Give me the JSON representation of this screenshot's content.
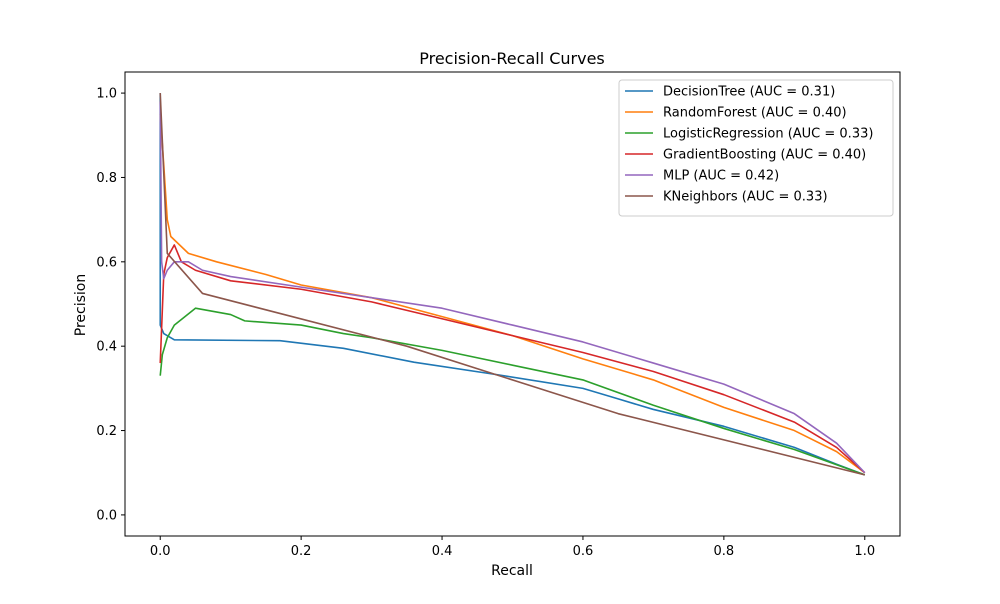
{
  "chart_data": {
    "type": "line",
    "title": "Precision-Recall Curves",
    "xlabel": "Recall",
    "ylabel": "Precision",
    "xlim": [
      -0.05,
      1.05
    ],
    "ylim": [
      -0.05,
      1.05
    ],
    "xticks": [
      0.0,
      0.2,
      0.4,
      0.6,
      0.8,
      1.0
    ],
    "xtick_labels": [
      "0.0",
      "0.2",
      "0.4",
      "0.6",
      "0.8",
      "1.0"
    ],
    "yticks": [
      0.0,
      0.2,
      0.4,
      0.6,
      0.8,
      1.0
    ],
    "ytick_labels": [
      "0.0",
      "0.2",
      "0.4",
      "0.6",
      "0.8",
      "1.0"
    ],
    "grid": false,
    "legend_position": "top-right",
    "series": [
      {
        "name": "DecisionTree (AUC = 0.31)",
        "color": "#1f77b4",
        "points": [
          [
            0.0,
            1.0
          ],
          [
            0.0,
            0.45
          ],
          [
            0.005,
            0.43
          ],
          [
            0.02,
            0.415
          ],
          [
            0.17,
            0.413
          ],
          [
            0.26,
            0.395
          ],
          [
            0.36,
            0.362
          ],
          [
            0.48,
            0.332
          ],
          [
            0.6,
            0.3
          ],
          [
            0.65,
            0.275
          ],
          [
            0.7,
            0.25
          ],
          [
            0.8,
            0.21
          ],
          [
            0.9,
            0.16
          ],
          [
            0.96,
            0.12
          ],
          [
            1.0,
            0.095
          ]
        ]
      },
      {
        "name": "RandomForest (AUC = 0.40)",
        "color": "#ff7f0e",
        "points": [
          [
            0.0,
            0.95
          ],
          [
            0.005,
            0.83
          ],
          [
            0.01,
            0.7
          ],
          [
            0.015,
            0.66
          ],
          [
            0.04,
            0.62
          ],
          [
            0.08,
            0.6
          ],
          [
            0.15,
            0.57
          ],
          [
            0.2,
            0.545
          ],
          [
            0.3,
            0.515
          ],
          [
            0.4,
            0.47
          ],
          [
            0.5,
            0.425
          ],
          [
            0.6,
            0.37
          ],
          [
            0.7,
            0.32
          ],
          [
            0.8,
            0.255
          ],
          [
            0.9,
            0.2
          ],
          [
            0.96,
            0.15
          ],
          [
            1.0,
            0.1
          ]
        ]
      },
      {
        "name": "LogisticRegression (AUC = 0.33)",
        "color": "#2ca02c",
        "points": [
          [
            0.0,
            0.33
          ],
          [
            0.003,
            0.38
          ],
          [
            0.01,
            0.42
          ],
          [
            0.02,
            0.45
          ],
          [
            0.05,
            0.49
          ],
          [
            0.1,
            0.475
          ],
          [
            0.12,
            0.46
          ],
          [
            0.2,
            0.45
          ],
          [
            0.26,
            0.43
          ],
          [
            0.3,
            0.42
          ],
          [
            0.4,
            0.39
          ],
          [
            0.5,
            0.355
          ],
          [
            0.6,
            0.32
          ],
          [
            0.7,
            0.26
          ],
          [
            0.8,
            0.205
          ],
          [
            0.9,
            0.155
          ],
          [
            1.0,
            0.095
          ]
        ]
      },
      {
        "name": "GradientBoosting (AUC = 0.40)",
        "color": "#d62728",
        "points": [
          [
            0.0,
            0.36
          ],
          [
            0.005,
            0.57
          ],
          [
            0.01,
            0.61
          ],
          [
            0.02,
            0.64
          ],
          [
            0.03,
            0.6
          ],
          [
            0.05,
            0.58
          ],
          [
            0.1,
            0.555
          ],
          [
            0.2,
            0.535
          ],
          [
            0.3,
            0.505
          ],
          [
            0.4,
            0.465
          ],
          [
            0.5,
            0.425
          ],
          [
            0.6,
            0.385
          ],
          [
            0.7,
            0.34
          ],
          [
            0.8,
            0.285
          ],
          [
            0.9,
            0.22
          ],
          [
            0.96,
            0.16
          ],
          [
            1.0,
            0.1
          ]
        ]
      },
      {
        "name": "MLP (AUC = 0.42)",
        "color": "#9467bd",
        "points": [
          [
            0.0,
            0.98
          ],
          [
            0.002,
            0.6
          ],
          [
            0.005,
            0.56
          ],
          [
            0.01,
            0.58
          ],
          [
            0.02,
            0.6
          ],
          [
            0.04,
            0.6
          ],
          [
            0.06,
            0.58
          ],
          [
            0.1,
            0.565
          ],
          [
            0.2,
            0.54
          ],
          [
            0.3,
            0.515
          ],
          [
            0.4,
            0.49
          ],
          [
            0.5,
            0.45
          ],
          [
            0.6,
            0.41
          ],
          [
            0.7,
            0.36
          ],
          [
            0.8,
            0.31
          ],
          [
            0.9,
            0.24
          ],
          [
            0.96,
            0.17
          ],
          [
            1.0,
            0.1
          ]
        ]
      },
      {
        "name": "KNeighbors (AUC = 0.33)",
        "color": "#8c564b",
        "points": [
          [
            0.0,
            1.0
          ],
          [
            0.01,
            0.62
          ],
          [
            0.06,
            0.525
          ],
          [
            0.35,
            0.4
          ],
          [
            0.65,
            0.24
          ],
          [
            1.0,
            0.095
          ]
        ]
      }
    ]
  }
}
